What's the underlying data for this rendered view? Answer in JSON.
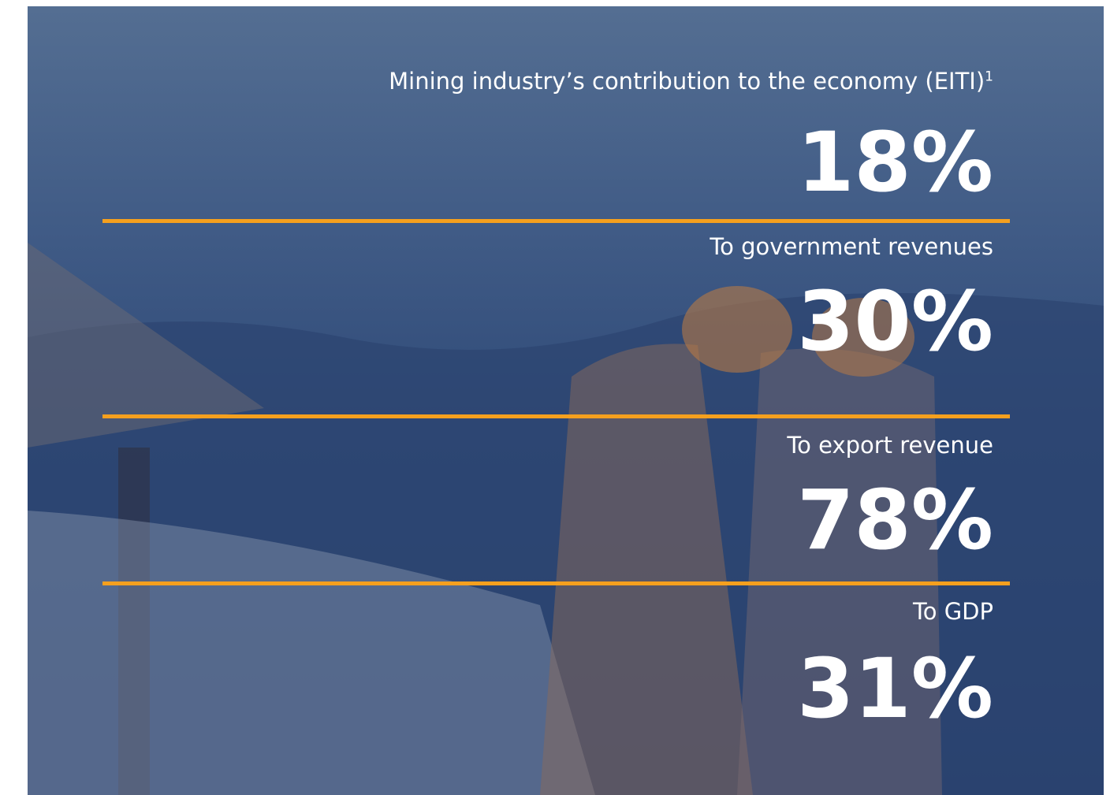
{
  "heading": {
    "text": "Mining industry’s contribution to the economy (EITI)",
    "footnote": "1"
  },
  "stats": [
    {
      "value": "18%"
    },
    {
      "label": "To government revenues",
      "value": "30%"
    },
    {
      "label": "To export revenue",
      "value": "78%"
    },
    {
      "label": "To GDP",
      "value": "31%"
    }
  ]
}
